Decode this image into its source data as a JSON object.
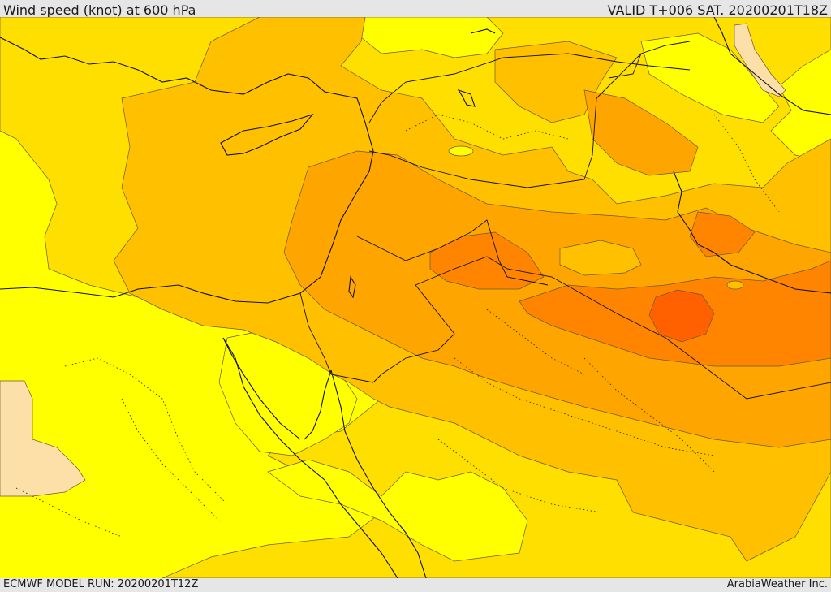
{
  "header": {
    "title": "Wind speed (knot) at 600 hPa",
    "valid": "VALID T+006 SAT. 20200201T18Z"
  },
  "footer": {
    "model_run": "ECMWF MODEL RUN: 20200201T12Z",
    "credit": "ArabiaWeather Inc."
  },
  "palette": {
    "very_low": "#fde0a8",
    "low": "#ffff00",
    "medium_low": "#ffdf00",
    "medium": "#ffc000",
    "medium_high": "#ffa500",
    "high": "#ff8500",
    "very_high": "#ff6000"
  }
}
